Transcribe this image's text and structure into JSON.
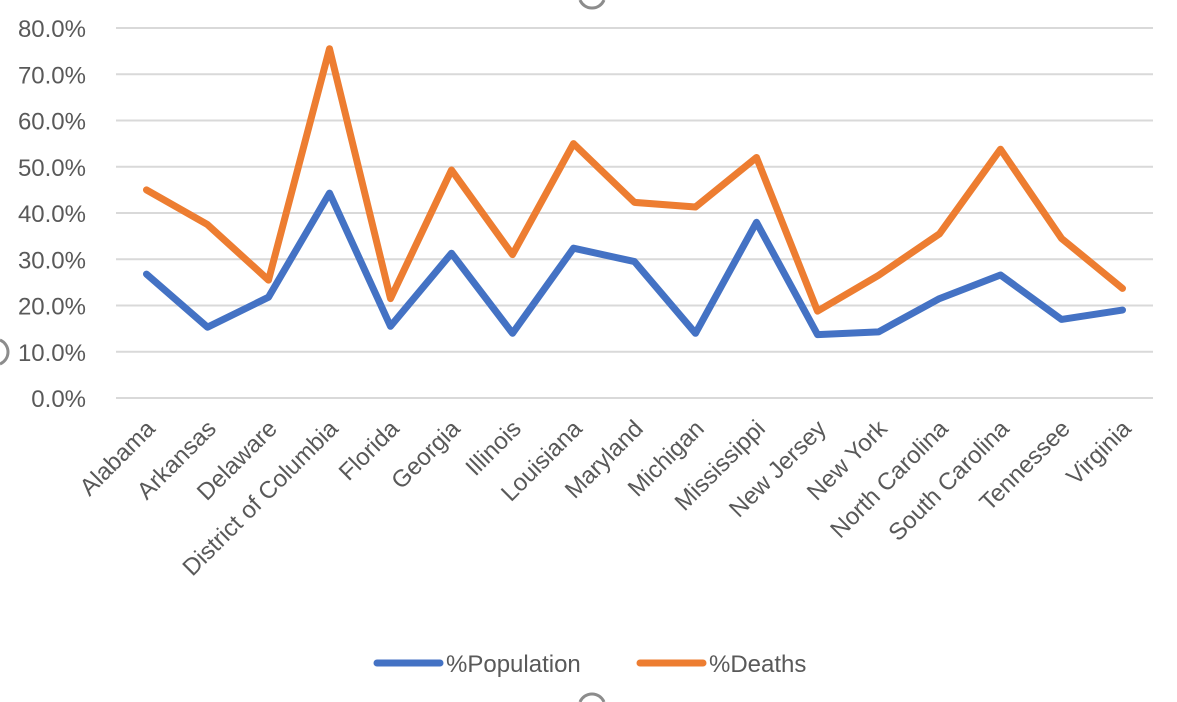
{
  "chart_data": {
    "type": "line",
    "title": "",
    "xlabel": "",
    "ylabel": "",
    "categories": [
      "Alabama",
      "Arkansas",
      "Delaware",
      "District of Columbia",
      "Florida",
      "Georgia",
      "Illinois",
      "Louisiana",
      "Maryland",
      "Michigan",
      "Mississippi",
      "New Jersey",
      "New York",
      "North Carolina",
      "South Carolina",
      "Tennessee",
      "Virginia"
    ],
    "ylim": [
      0,
      0.8
    ],
    "y_ticks": [
      0,
      0.1,
      0.2,
      0.3,
      0.4,
      0.5,
      0.6,
      0.7,
      0.8
    ],
    "y_tick_labels": [
      "0.0%",
      "10.0%",
      "20.0%",
      "30.0%",
      "40.0%",
      "50.0%",
      "60.0%",
      "70.0%",
      "80.0%"
    ],
    "grid": true,
    "legend_position": "bottom",
    "series": [
      {
        "name": "%Population",
        "color": "#4472c4",
        "values": [
          0.268,
          0.153,
          0.218,
          0.443,
          0.155,
          0.313,
          0.14,
          0.324,
          0.295,
          0.14,
          0.38,
          0.137,
          0.143,
          0.215,
          0.266,
          0.17,
          0.19
        ]
      },
      {
        "name": "%Deaths",
        "color": "#ed7d31",
        "values": [
          0.45,
          0.375,
          0.255,
          0.755,
          0.215,
          0.493,
          0.31,
          0.55,
          0.423,
          0.413,
          0.52,
          0.188,
          0.265,
          0.355,
          0.538,
          0.345,
          0.237
        ]
      }
    ]
  }
}
